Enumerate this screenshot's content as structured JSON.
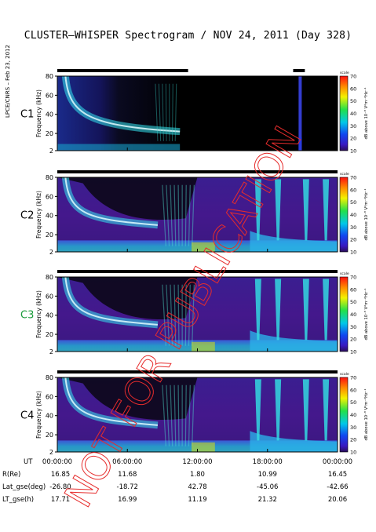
{
  "title": "CLUSTER–WHISPER Spectrogram / NOV 24, 2011 (Day 328)",
  "side_note": "LPCE/CNRS – Feb 23, 2012",
  "watermark": "NOT FOR PUBLICATION",
  "colorbar": {
    "scale_label": "scale",
    "unit_label": "dB above 10⁻⁸ V²m⁻²Hz⁻¹",
    "ticks": [
      "70",
      "60",
      "50",
      "40",
      "30",
      "20",
      "10"
    ]
  },
  "chart_data": [
    {
      "type": "heatmap",
      "panel": "C1",
      "label_color": "#000000",
      "ylabel": "Frequency (kHz)",
      "yticks": [
        "80",
        "60",
        "40",
        "20",
        "2"
      ],
      "ylim": [
        2,
        80
      ],
      "colorbar_range": [
        10,
        70
      ],
      "features": {
        "plasma_line_start_khz": 70,
        "plasma_line_end_khz": 22,
        "active_end_hour": 10.5,
        "late_burst_hour": 20.8
      },
      "coverage_bars": [
        [
          0,
          11.2
        ],
        [
          20.2,
          21.2
        ]
      ]
    },
    {
      "type": "heatmap",
      "panel": "C2",
      "label_color": "#000000",
      "ylabel": "Frequency (kHz)",
      "yticks": [
        "80",
        "60",
        "40",
        "20",
        "2"
      ],
      "ylim": [
        2,
        80
      ],
      "colorbar_range": [
        10,
        70
      ],
      "coverage_bars": [
        [
          0,
          24
        ]
      ]
    },
    {
      "type": "heatmap",
      "panel": "C3",
      "label_color": "#1a9a3a",
      "ylabel": "Frequency (kHz)",
      "yticks": [
        "80",
        "60",
        "40",
        "20",
        "2"
      ],
      "ylim": [
        2,
        80
      ],
      "colorbar_range": [
        10,
        70
      ],
      "coverage_bars": [
        [
          0,
          24
        ]
      ]
    },
    {
      "type": "heatmap",
      "panel": "C4",
      "label_color": "#000000",
      "ylabel": "Frequency (kHz)",
      "yticks": [
        "80",
        "60",
        "40",
        "20",
        "2"
      ],
      "ylim": [
        2,
        80
      ],
      "colorbar_range": [
        10,
        70
      ],
      "coverage_bars": [
        [
          0,
          24
        ]
      ]
    }
  ],
  "time_axis": {
    "xlim_hours": [
      0,
      24
    ],
    "ticks": [
      {
        "hour": 0,
        "label": "00:00:00"
      },
      {
        "hour": 6,
        "label": "06:00:00"
      },
      {
        "hour": 12,
        "label": "12:00:00"
      },
      {
        "hour": 18,
        "label": "18:00:00"
      },
      {
        "hour": 24,
        "label": "00:00:00"
      }
    ]
  },
  "ephemeris": {
    "labels": [
      "UT",
      "R(Re)",
      "Lat_gse(deg)",
      "LT_gse(h)"
    ],
    "rows": [
      [
        "16.85",
        "11.68",
        "1.80",
        "10.99",
        "16.45"
      ],
      [
        "-26.80",
        "-18.72",
        "42.78",
        "-45.06",
        "-42.66"
      ],
      [
        "17.71",
        "16.99",
        "11.19",
        "21.32",
        "20.06"
      ]
    ]
  }
}
